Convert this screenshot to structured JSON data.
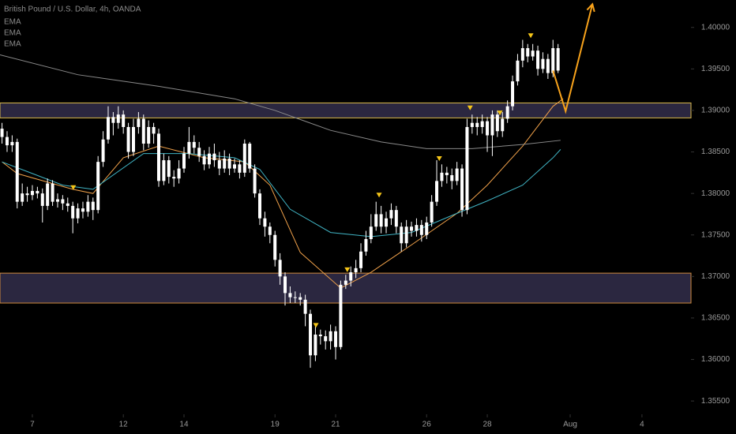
{
  "chart_data": {
    "type": "candlestick",
    "title": "British Pound / U.S. Dollar, 4h, OANDA",
    "color": "#ffffff",
    "x": [
      -6,
      -5,
      -4,
      -3,
      -2,
      -1,
      0,
      1,
      2,
      3,
      4,
      5,
      6,
      7,
      8,
      9,
      10,
      11,
      12,
      13,
      14,
      15,
      16,
      17,
      18,
      19,
      20,
      21,
      22,
      23,
      24,
      25,
      26,
      27,
      28,
      29,
      30,
      31,
      32,
      33,
      34,
      35,
      36,
      37,
      38,
      39,
      40,
      41,
      42,
      43,
      44,
      45,
      46,
      47,
      48,
      49,
      50,
      51,
      52,
      53,
      54,
      55,
      56,
      57,
      58,
      59,
      60,
      61,
      62,
      63,
      64,
      65,
      66,
      67,
      68,
      69,
      70,
      71,
      72,
      73,
      74,
      75,
      76,
      77,
      78,
      79,
      80,
      81,
      82,
      83,
      84,
      85,
      86,
      87,
      88,
      89,
      90,
      91,
      92,
      93,
      94,
      95,
      96,
      97,
      98,
      99,
      100,
      101,
      102,
      103,
      104
    ],
    "open": [
      1.3878,
      1.3868,
      1.3858,
      1.3862,
      1.379,
      1.38,
      1.3798,
      1.3803,
      1.38,
      1.3785,
      1.3812,
      1.379,
      1.3793,
      1.3788,
      1.3785,
      1.377,
      1.3782,
      1.3778,
      1.379,
      1.378,
      1.3838,
      1.3865,
      1.3892,
      1.3885,
      1.3895,
      1.388,
      1.385,
      1.388,
      1.389,
      1.386,
      1.388,
      1.3872,
      1.3815,
      1.384,
      1.382,
      1.3818,
      1.383,
      1.3848,
      1.3862,
      1.3855,
      1.3845,
      1.3835,
      1.3848,
      1.384,
      1.383,
      1.3842,
      1.383,
      1.3835,
      1.3825,
      1.386,
      1.383,
      1.38,
      1.377,
      1.376,
      1.375,
      1.372,
      1.37,
      1.368,
      1.3675,
      1.3675,
      1.3672,
      1.3655,
      1.3605,
      1.363,
      1.3628,
      1.3622,
      1.3634,
      1.3615,
      1.369,
      1.3695,
      1.3705,
      1.371,
      1.373,
      1.3745,
      1.376,
      1.3775,
      1.376,
      1.377,
      1.378,
      1.376,
      1.374,
      1.376,
      1.3755,
      1.3762,
      1.375,
      1.3765,
      1.379,
      1.3815,
      1.3825,
      1.3822,
      1.3815,
      1.383,
      1.378,
      1.388,
      1.3885,
      1.388,
      1.3887,
      1.387,
      1.3895,
      1.3875,
      1.389,
      1.3905,
      1.3935,
      1.396,
      1.3975,
      1.3965,
      1.3972,
      1.395,
      1.3962,
      1.3945,
      1.3975
    ],
    "high": [
      1.3885,
      1.3875,
      1.387,
      1.3866,
      1.3812,
      1.3808,
      1.381,
      1.3808,
      1.3806,
      1.3818,
      1.3816,
      1.38,
      1.3798,
      1.3795,
      1.379,
      1.3788,
      1.379,
      1.3798,
      1.3795,
      1.3845,
      1.3875,
      1.3905,
      1.3898,
      1.3905,
      1.39,
      1.3885,
      1.389,
      1.3898,
      1.3895,
      1.3888,
      1.3885,
      1.3878,
      1.3848,
      1.3845,
      1.3828,
      1.384,
      1.3856,
      1.388,
      1.387,
      1.3862,
      1.3852,
      1.3856,
      1.386,
      1.385,
      1.3852,
      1.3848,
      1.3842,
      1.384,
      1.3865,
      1.3862,
      1.3835,
      1.3805,
      1.3778,
      1.3765,
      1.3755,
      1.3728,
      1.3705,
      1.3688,
      1.3682,
      1.368,
      1.3678,
      1.366,
      1.364,
      1.3636,
      1.3635,
      1.3642,
      1.364,
      1.3695,
      1.3702,
      1.3712,
      1.372,
      1.374,
      1.3755,
      1.3775,
      1.379,
      1.3785,
      1.3778,
      1.3788,
      1.3785,
      1.3765,
      1.3768,
      1.3766,
      1.377,
      1.3768,
      1.3772,
      1.3798,
      1.384,
      1.3835,
      1.3832,
      1.383,
      1.3838,
      1.3835,
      1.389,
      1.3895,
      1.3892,
      1.3895,
      1.3892,
      1.39,
      1.39,
      1.3898,
      1.3912,
      1.3942,
      1.3968,
      1.3985,
      1.398,
      1.398,
      1.3978,
      1.397,
      1.3968,
      1.3985,
      1.398
    ],
    "low": [
      1.386,
      1.385,
      1.385,
      1.3782,
      1.3785,
      1.379,
      1.3792,
      1.3794,
      1.3765,
      1.378,
      1.3785,
      1.3783,
      1.378,
      1.3778,
      1.3752,
      1.3764,
      1.377,
      1.3772,
      1.3768,
      1.3776,
      1.3832,
      1.386,
      1.387,
      1.3878,
      1.3872,
      1.3842,
      1.3845,
      1.3872,
      1.3852,
      1.3855,
      1.386,
      1.3808,
      1.381,
      1.3812,
      1.3808,
      1.3812,
      1.3825,
      1.3842,
      1.3848,
      1.3838,
      1.3828,
      1.383,
      1.3832,
      1.3822,
      1.3825,
      1.3822,
      1.3825,
      1.3818,
      1.382,
      1.3825,
      1.3795,
      1.3762,
      1.3748,
      1.374,
      1.3712,
      1.369,
      1.3665,
      1.3668,
      1.3668,
      1.3665,
      1.364,
      1.359,
      1.3598,
      1.3618,
      1.3612,
      1.3612,
      1.36,
      1.3612,
      1.3685,
      1.3688,
      1.3698,
      1.3705,
      1.3725,
      1.374,
      1.3755,
      1.3752,
      1.3752,
      1.3762,
      1.3752,
      1.373,
      1.3735,
      1.3748,
      1.3748,
      1.3742,
      1.3745,
      1.376,
      1.3785,
      1.3808,
      1.3812,
      1.3805,
      1.381,
      1.3772,
      1.3775,
      1.3872,
      1.387,
      1.3872,
      1.385,
      1.3845,
      1.3868,
      1.3868,
      1.3885,
      1.39,
      1.393,
      1.3952,
      1.3958,
      1.396,
      1.3942,
      1.3945,
      1.3938,
      1.394,
      1.3945
    ],
    "close": [
      1.3868,
      1.3858,
      1.3862,
      1.379,
      1.38,
      1.3798,
      1.3803,
      1.38,
      1.3785,
      1.3812,
      1.379,
      1.3793,
      1.3788,
      1.3785,
      1.377,
      1.3782,
      1.3778,
      1.379,
      1.378,
      1.3838,
      1.3865,
      1.3892,
      1.3885,
      1.3895,
      1.388,
      1.385,
      1.388,
      1.389,
      1.386,
      1.388,
      1.3872,
      1.3815,
      1.384,
      1.382,
      1.3818,
      1.383,
      1.3848,
      1.3862,
      1.3855,
      1.3845,
      1.3835,
      1.3848,
      1.384,
      1.383,
      1.3842,
      1.383,
      1.3835,
      1.3825,
      1.386,
      1.383,
      1.38,
      1.377,
      1.376,
      1.375,
      1.372,
      1.37,
      1.368,
      1.3675,
      1.3675,
      1.3672,
      1.3655,
      1.3605,
      1.363,
      1.3628,
      1.3622,
      1.3634,
      1.3615,
      1.369,
      1.3695,
      1.3705,
      1.371,
      1.373,
      1.3745,
      1.376,
      1.3775,
      1.376,
      1.377,
      1.378,
      1.376,
      1.374,
      1.376,
      1.3755,
      1.3762,
      1.375,
      1.3765,
      1.379,
      1.3815,
      1.3825,
      1.3822,
      1.3815,
      1.383,
      1.378,
      1.388,
      1.3885,
      1.388,
      1.3887,
      1.387,
      1.3895,
      1.3875,
      1.389,
      1.3905,
      1.3935,
      1.396,
      1.3975,
      1.3965,
      1.3972,
      1.395,
      1.3962,
      1.3945,
      1.3975,
      1.3948
    ],
    "lines": [
      {
        "name": "EMA",
        "color": "#f0a14a",
        "x": [
          -6,
          -3,
          8,
          12,
          18,
          25,
          34,
          42,
          47,
          53,
          61,
          67,
          75,
          84,
          90,
          97,
          103,
          105
        ],
        "values": [
          1.3838,
          1.3824,
          1.3805,
          1.38,
          1.3843,
          1.3857,
          1.3843,
          1.3838,
          1.381,
          1.3729,
          1.3686,
          1.3705,
          1.3738,
          1.3776,
          1.381,
          1.3857,
          1.3905,
          1.3914
        ]
      },
      {
        "name": "EMA",
        "color": "#40b4c4",
        "x": [
          -6,
          0,
          6,
          12,
          22,
          31,
          40,
          45,
          51,
          59,
          67,
          75,
          84,
          90,
          97,
          103,
          104.5
        ],
        "values": [
          1.3838,
          1.3824,
          1.381,
          1.3805,
          1.3848,
          1.3848,
          1.3843,
          1.3829,
          1.3781,
          1.3753,
          1.3748,
          1.3753,
          1.3776,
          1.3791,
          1.381,
          1.3843,
          1.3853
        ]
      },
      {
        "name": "EMA",
        "color": "#8a8a8a",
        "x": [
          -6.4,
          9,
          25,
          40,
          48,
          59,
          69,
          78,
          87,
          97,
          104.5
        ],
        "values": [
          1.3967,
          1.3943,
          1.3929,
          1.3914,
          1.39,
          1.3876,
          1.3862,
          1.3854,
          1.3854,
          1.3859,
          1.3864
        ]
      }
    ],
    "zones": [
      {
        "top": 1.3909,
        "bottom": 1.3891,
        "color": "#2b2740",
        "border": "#d9b84a"
      },
      {
        "top": 1.3704,
        "bottom": 1.3668,
        "color": "#2b2740",
        "border": "#d08a3c"
      }
    ],
    "markers": {
      "color": "#f5c518",
      "x": [
        8.1,
        56.1,
        62.3,
        68.6,
        80.5,
        86.6,
        92.5,
        98.6
      ],
      "values": [
        1.3807,
        1.3641,
        1.3708,
        1.3798,
        1.3842,
        1.3903,
        1.3897,
        1.399
      ]
    },
    "projection": {
      "color": "#f7a21b",
      "x": [
        103,
        105.5,
        110.8
      ],
      "values": [
        1.3948,
        1.3899,
        1.4028
      ]
    },
    "xlim": [
      -6.4,
      130.3
    ],
    "ylim": [
      1.3534,
      1.4033
    ],
    "xticks": [
      {
        "value": 0,
        "label": "7"
      },
      {
        "value": 18,
        "label": "12"
      },
      {
        "value": 30,
        "label": "14"
      },
      {
        "value": 48,
        "label": "19"
      },
      {
        "value": 60,
        "label": "21"
      },
      {
        "value": 78,
        "label": "26"
      },
      {
        "value": 90,
        "label": "28"
      },
      {
        "value": 106.4,
        "label": "Aug"
      },
      {
        "value": 120.6,
        "label": "4"
      }
    ],
    "yticks": [
      {
        "value": 1.355,
        "label": "1.35500"
      },
      {
        "value": 1.36,
        "label": "1.36000"
      },
      {
        "value": 1.365,
        "label": "1.36500"
      },
      {
        "value": 1.37,
        "label": "1.37000"
      },
      {
        "value": 1.375,
        "label": "1.37500"
      },
      {
        "value": 1.38,
        "label": "1.38000"
      },
      {
        "value": 1.385,
        "label": "1.38500"
      },
      {
        "value": 1.39,
        "label": "1.39000"
      },
      {
        "value": 1.395,
        "label": "1.39500"
      },
      {
        "value": 1.4,
        "label": "1.40000"
      }
    ]
  }
}
